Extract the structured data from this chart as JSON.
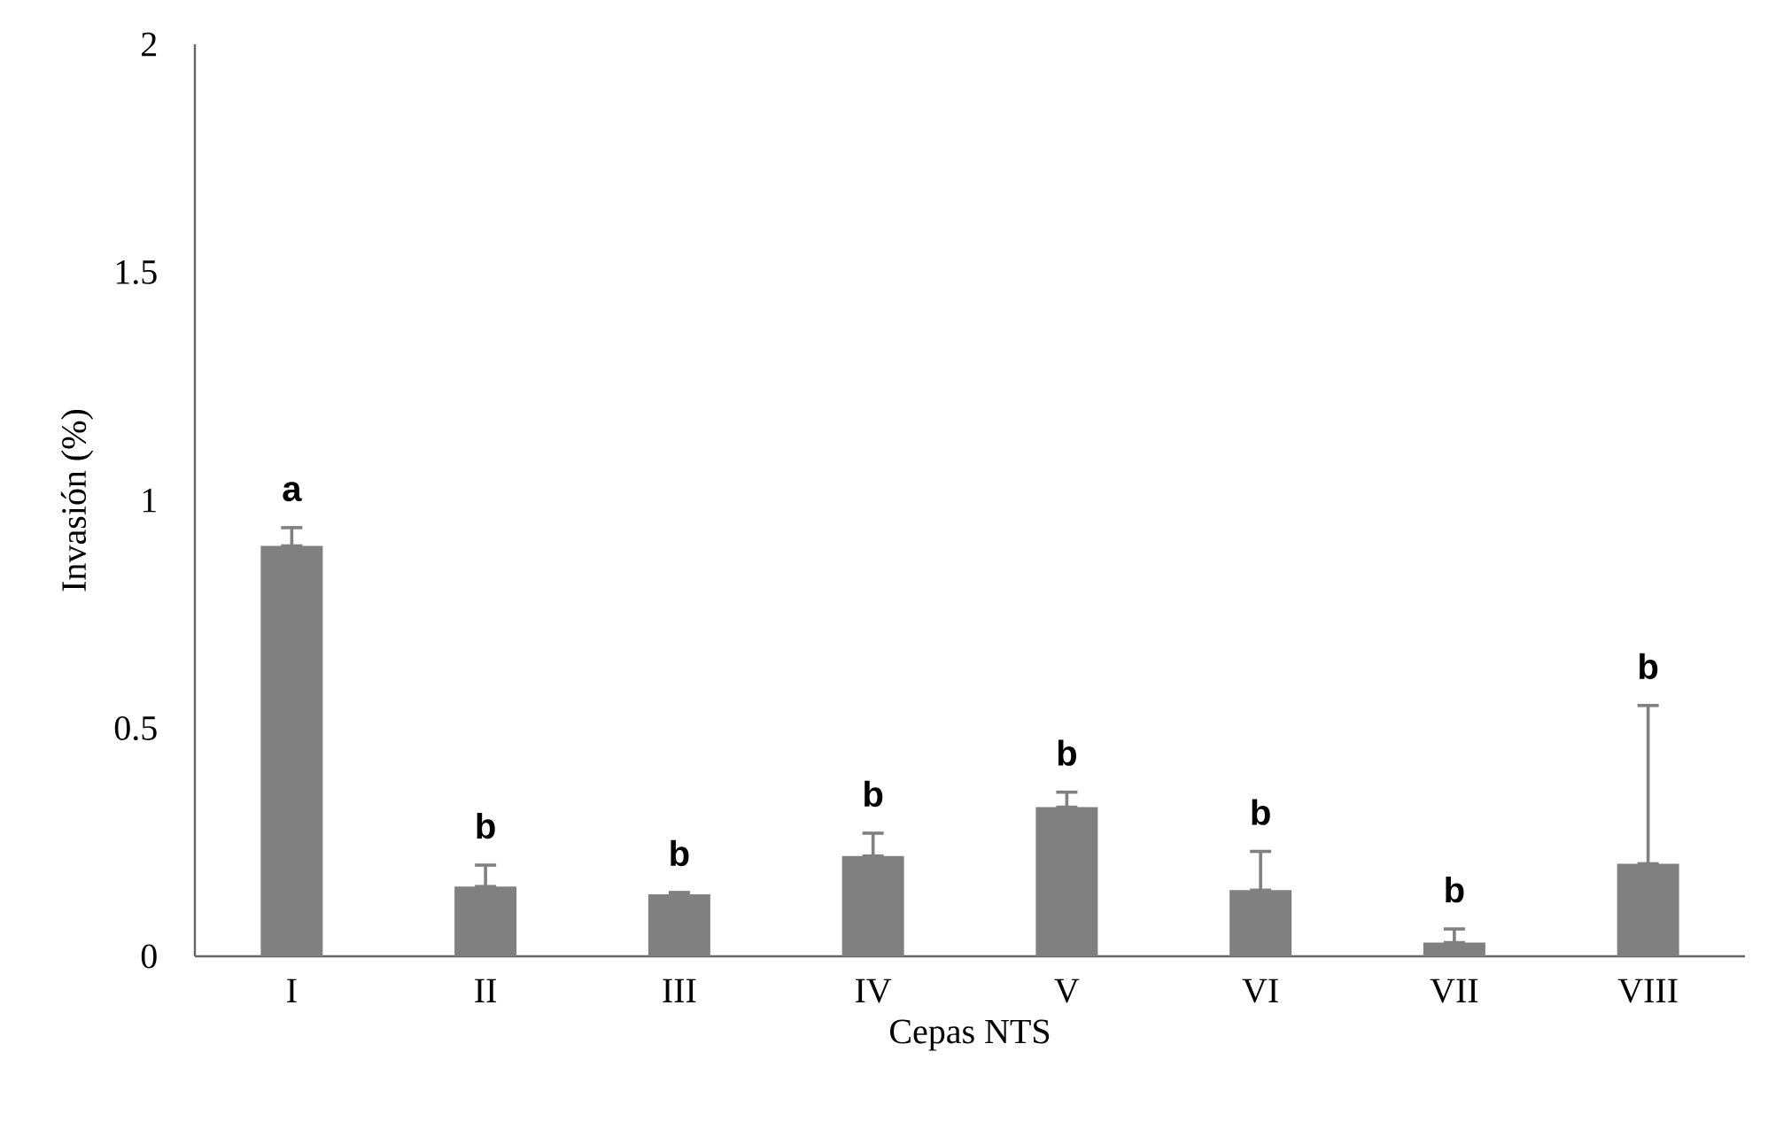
{
  "chart_data": {
    "type": "bar",
    "xlabel": "Cepas NTS",
    "ylabel": "Invasión (%)",
    "categories": [
      "I",
      "II",
      "III",
      "IV",
      "V",
      "VI",
      "VII",
      "VIII"
    ],
    "values": [
      0.9,
      0.153,
      0.136,
      0.22,
      0.327,
      0.145,
      0.03,
      0.203
    ],
    "errors": [
      [
        0.9,
        0.94
      ],
      [
        0.153,
        0.2
      ],
      [
        0.136,
        0.14
      ],
      [
        0.22,
        0.27
      ],
      [
        0.327,
        0.36
      ],
      [
        0.145,
        0.23
      ],
      [
        0.03,
        0.06
      ],
      [
        0.203,
        0.55
      ]
    ],
    "color": "#808080",
    "ylim": [
      0,
      2
    ],
    "yticks": [
      0,
      0.5,
      1,
      1.5,
      2
    ],
    "grid": false,
    "annotations": [
      "a",
      "b",
      "b",
      "b",
      "b",
      "b",
      "b",
      "b"
    ]
  }
}
